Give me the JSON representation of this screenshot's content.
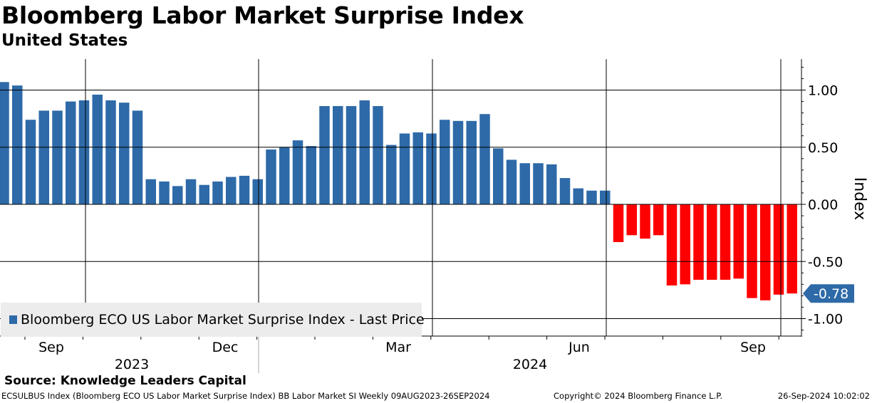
{
  "header": {
    "title": "Bloomberg Labor Market Surprise Index",
    "subtitle": "United States"
  },
  "footer": {
    "source": "Source: Knowledge Leaders Capital",
    "ticker_info": "ECSULBUS Index (Bloomberg ECO US Labor Market Surprise Index) BB Labor Market SI  Weekly 09AUG2023-26SEP2024",
    "copyright": "Copyright© 2024 Bloomberg Finance L.P.",
    "timestamp": "26-Sep-2024 10:02:02"
  },
  "colors": {
    "positive": "#2e6aa8",
    "negative": "#ff0000",
    "grid": "#000000",
    "legend_bg": "#ececec",
    "last_price_tag": "#2e6aa8"
  },
  "chart_data": {
    "type": "bar",
    "title": "Bloomberg Labor Market Surprise Index",
    "subtitle": "United States",
    "ylabel": "Index",
    "ylim": [
      -1.17,
      1.27
    ],
    "y_ticks": [
      1.0,
      0.5,
      0.0,
      -0.5,
      -1.0
    ],
    "y_tick_labels": [
      "1.00",
      "0.50",
      "0.00",
      "-0.50",
      "-1.00"
    ],
    "x_month_labels": [
      "Sep",
      "Dec",
      "Mar",
      "Jun",
      "Sep"
    ],
    "x_year_labels": [
      "2023",
      "2024"
    ],
    "legend": [
      "Bloomberg ECO US Labor Market Surprise Index - Last Price"
    ],
    "legend_position": "bottom-left",
    "last_price_label": "-0.78",
    "last_value": -0.78,
    "series": [
      {
        "name": "Bloomberg ECO US Labor Market Surprise Index - Last Price",
        "values": [
          1.07,
          1.04,
          0.74,
          0.82,
          0.82,
          0.9,
          0.91,
          0.96,
          0.91,
          0.89,
          0.82,
          0.22,
          0.2,
          0.16,
          0.22,
          0.17,
          0.2,
          0.24,
          0.25,
          0.22,
          0.48,
          0.5,
          0.56,
          0.51,
          0.86,
          0.86,
          0.86,
          0.91,
          0.86,
          0.52,
          0.62,
          0.63,
          0.62,
          0.74,
          0.73,
          0.73,
          0.79,
          0.49,
          0.39,
          0.36,
          0.36,
          0.35,
          0.23,
          0.14,
          0.12,
          0.12,
          -0.33,
          -0.27,
          -0.3,
          -0.27,
          -0.71,
          -0.7,
          -0.66,
          -0.66,
          -0.66,
          -0.65,
          -0.82,
          -0.84,
          -0.79,
          -0.78
        ]
      }
    ]
  }
}
